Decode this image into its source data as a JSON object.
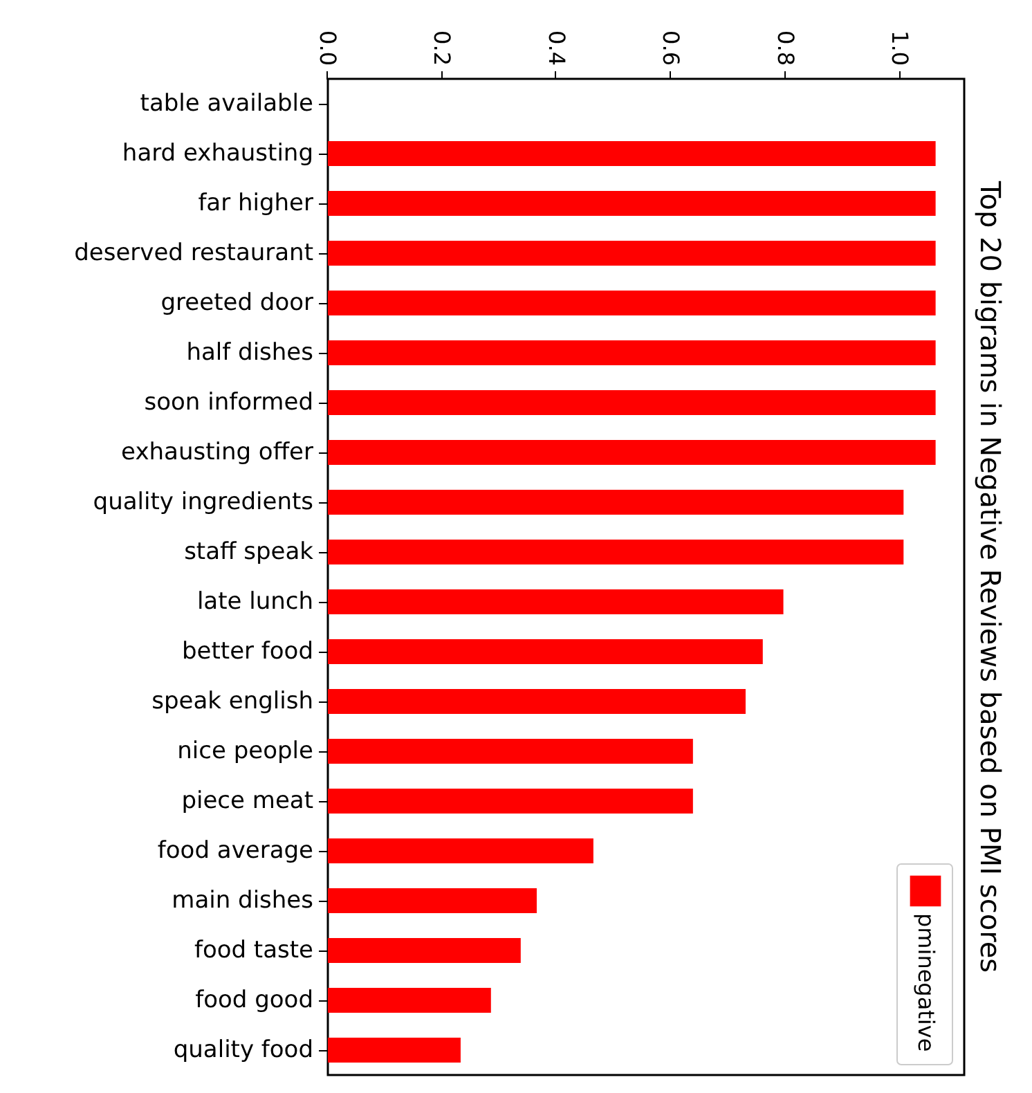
{
  "chart_data": {
    "type": "bar",
    "title": "Top 20 bigrams in Negative Reviews based on PMI scores",
    "categories": [
      "table available",
      "hard exhausting",
      "far higher",
      "deserved restaurant",
      "greeted door",
      "half dishes",
      "soon informed",
      "exhausting offer",
      "quality ingredients",
      "staff speak",
      "late lunch",
      "better food",
      "speak english",
      "nice people",
      "piece meat",
      "food average",
      "main dishes",
      "food taste",
      "food good",
      "quality food"
    ],
    "series": [
      {
        "name": "pminegative",
        "color": "#ff0000",
        "values": [
          0,
          1.062,
          1.062,
          1.062,
          1.062,
          1.062,
          1.062,
          1.062,
          1.006,
          1.006,
          0.796,
          0.76,
          0.73,
          0.638,
          0.638,
          0.464,
          0.365,
          0.337,
          0.285,
          0.232
        ]
      }
    ],
    "orientation": "horizontal",
    "xlim": [
      0,
      1.112
    ],
    "xticks": [
      {
        "value": 0,
        "label": "0.0"
      },
      {
        "value": 0.2,
        "label": "0.2"
      },
      {
        "value": 0.4,
        "label": "0.4"
      },
      {
        "value": 0.6,
        "label": "0.6"
      },
      {
        "value": 0.8,
        "label": "0.8"
      },
      {
        "value": 1.0,
        "label": "1.0"
      }
    ],
    "legend": "bottom right",
    "grid": false
  }
}
